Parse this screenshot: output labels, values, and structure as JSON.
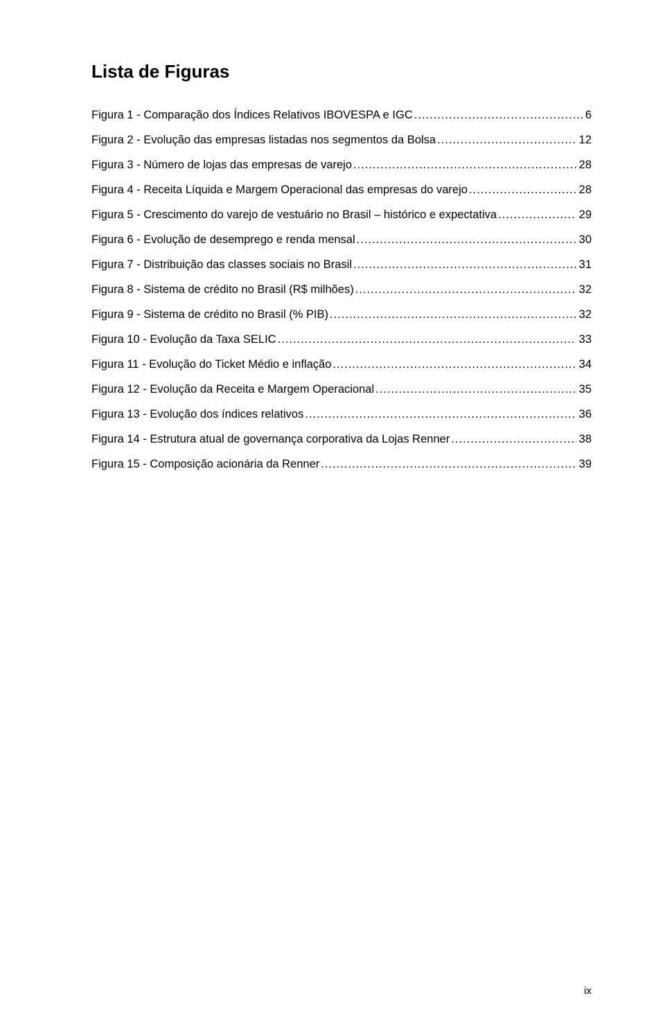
{
  "title": "Lista de Figuras",
  "page_number": "ix",
  "typography": {
    "title_fontsize_pt": 20,
    "body_fontsize_pt": 12,
    "font_family": "Arial",
    "text_color": "#000000",
    "background_color": "#ffffff",
    "line_height_em": 2.18
  },
  "entries": [
    {
      "label": "Figura 1 - Comparação dos Índices Relativos IBOVESPA e IGC",
      "page": "6"
    },
    {
      "label": "Figura 2 - Evolução das empresas listadas nos segmentos da Bolsa",
      "page": "12"
    },
    {
      "label": "Figura 3 - Número de lojas das empresas de varejo",
      "page": "28"
    },
    {
      "label": "Figura 4 - Receita Líquida e Margem Operacional das empresas do varejo",
      "page": "28"
    },
    {
      "label": "Figura 5 - Crescimento do varejo de vestuário no Brasil – histórico e expectativa",
      "page": "29"
    },
    {
      "label": "Figura 6 - Evolução de desemprego e renda mensal",
      "page": "30"
    },
    {
      "label": "Figura 7 - Distribuição das classes sociais no Brasil",
      "page": "31"
    },
    {
      "label": "Figura 8 - Sistema de crédito no Brasil (R$ milhões)",
      "page": "32"
    },
    {
      "label": "Figura 9 - Sistema de crédito no Brasil (% PIB)",
      "page": "32"
    },
    {
      "label": "Figura 10 - Evolução da Taxa SELIC",
      "page": "33"
    },
    {
      "label": "Figura 11 - Evolução do Ticket Médio e inflação",
      "page": "34"
    },
    {
      "label": "Figura 12 - Evolução da Receita e Margem Operacional",
      "page": "35"
    },
    {
      "label": "Figura 13 - Evolução dos índices relativos",
      "page": "36"
    },
    {
      "label": "Figura 14 - Estrutura atual de governança corporativa da Lojas Renner",
      "page": "38"
    },
    {
      "label": "Figura 15 - Composição acionária da Renner",
      "page": "39"
    }
  ]
}
